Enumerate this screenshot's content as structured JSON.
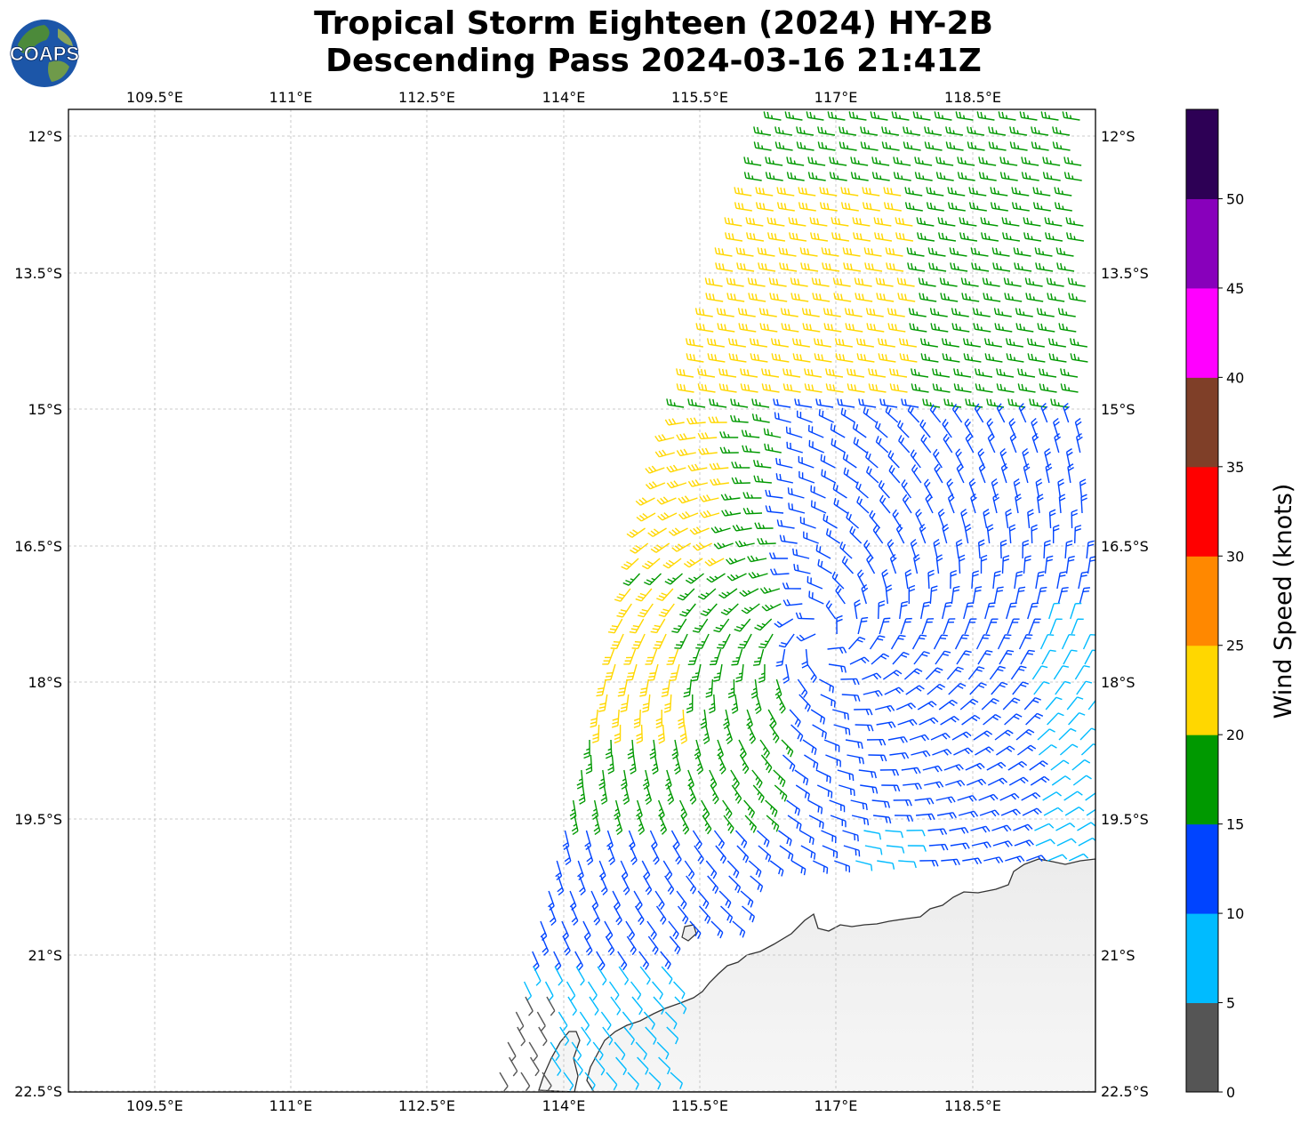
{
  "title_line1": "Tropical Storm Eighteen (2024) HY-2B",
  "title_line2": "Descending Pass 2024-03-16 21:41Z",
  "logo_text": "COAPS",
  "lon_ticks": [
    "109.5°E",
    "111°E",
    "112.5°E",
    "114°E",
    "115.5°E",
    "117°E",
    "118.5°E"
  ],
  "lat_ticks": [
    "12°S",
    "13.5°S",
    "15°S",
    "16.5°S",
    "18°S",
    "19.5°S",
    "21°S",
    "22.5°S"
  ],
  "colorbar": {
    "label": "Wind Speed (knots)",
    "ticks": [
      "0",
      "5",
      "10",
      "15",
      "20",
      "25",
      "30",
      "35",
      "40",
      "45",
      "50"
    ],
    "colors": [
      "#555555",
      "#00bbff",
      "#0044ff",
      "#009900",
      "#ffd700",
      "#ff8800",
      "#ff0000",
      "#7f3f28",
      "#ff00ff",
      "#8800bb",
      "#2d0055"
    ]
  },
  "chart_data": {
    "type": "map",
    "projection": "plate carree",
    "lon_range": [
      108.5,
      119.8
    ],
    "lat_range": [
      -22.5,
      -11.7
    ],
    "gridlines": true,
    "wind_barb_regions": [
      {
        "speed_knots_range": "15-20",
        "color": "#009900",
        "area": "north of 13°S and east of 117.5°E, and a curved band around 16–19°S"
      },
      {
        "speed_knots_range": "20-25",
        "color": "#ffd700",
        "area": "13°S–16.5°S west of 117°E, and 17°S–18.5°S near 114.5°E–116.5°E"
      },
      {
        "speed_knots_range": "10-15",
        "color": "#0044ff",
        "area": "storm circulation 16.5°S–21°S, 114°E–119.8°E"
      },
      {
        "speed_knots_range": "5-10",
        "color": "#00bbff",
        "area": "outer edges near 18°S–20°S east and 21°S near 114°E"
      },
      {
        "speed_knots_range": "0-5",
        "color": "#555555",
        "area": "near 21.6°S, 113.6°E"
      }
    ],
    "land": "Western Australia coast (NW Cape / Pilbara) in the lower right"
  }
}
